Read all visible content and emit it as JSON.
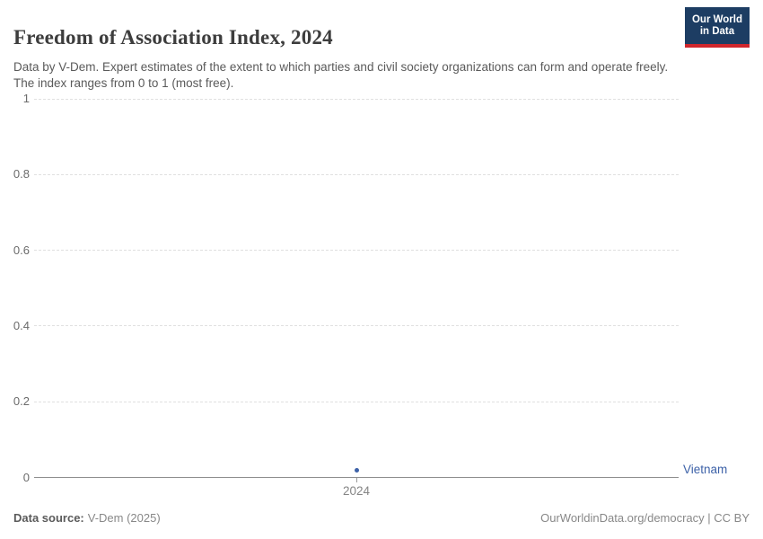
{
  "header": {
    "title": "Freedom of Association Index, 2024",
    "subtitle": "Data by V-Dem. Expert estimates of the extent to which parties and civil society organizations can form and operate freely. The index ranges from 0 to 1 (most free).",
    "logo_line1": "Our World",
    "logo_line2": "in Data"
  },
  "chart_data": {
    "type": "scatter",
    "title": "Freedom of Association Index, 2024",
    "x": [
      2024
    ],
    "x_ticks": [
      "2024"
    ],
    "y_ticks": [
      1,
      0.8,
      0.6,
      0.4,
      0.2,
      0
    ],
    "ylim": [
      0,
      1
    ],
    "grid": "horizontal-dashed",
    "legend_position": "label-right-of-plot",
    "series": [
      {
        "name": "Vietnam",
        "values": [
          0.02
        ],
        "color": "#3d62a8"
      }
    ]
  },
  "colors": {
    "accent_blue": "#3d62a8",
    "logo_navy": "#1d3d63",
    "logo_red": "#d0262c",
    "gridline": "#e0e0e0",
    "axis": "#8f8f8f"
  },
  "footer": {
    "data_source_label": "Data source:",
    "data_source_value": "V-Dem (2025)",
    "attribution": "OurWorldinData.org/democracy | CC BY"
  }
}
